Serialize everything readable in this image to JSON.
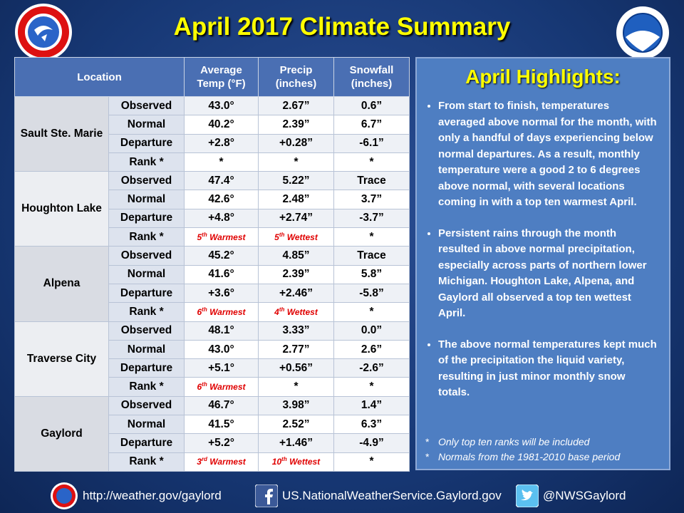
{
  "header": {
    "title": "April 2017 Climate Summary"
  },
  "table": {
    "columns": [
      "Location",
      "Average Temp (°F)",
      "Precip (inches)",
      "Snowfall (inches)"
    ],
    "row_labels": [
      "Observed",
      "Normal",
      "Departure",
      "Rank *"
    ],
    "locations": [
      {
        "name": "Sault Ste. Marie",
        "rows": [
          [
            "43.0°",
            "2.67”",
            "0.6”"
          ],
          [
            "40.2°",
            "2.39”",
            "6.7”"
          ],
          [
            "+2.8°",
            "+0.28”",
            "-6.1”"
          ],
          [
            "*",
            "*",
            "*"
          ]
        ]
      },
      {
        "name": "Houghton Lake",
        "rows": [
          [
            "47.4°",
            "5.22”",
            "Trace"
          ],
          [
            "42.6°",
            "2.48”",
            "3.7”"
          ],
          [
            "+4.8°",
            "+2.74”",
            "-3.7”"
          ],
          [
            {
              "number": "5",
              "suffix": "th",
              "label": "Warmest"
            },
            {
              "number": "5",
              "suffix": "th",
              "label": "Wettest"
            },
            "*"
          ]
        ]
      },
      {
        "name": "Alpena",
        "rows": [
          [
            "45.2°",
            "4.85”",
            "Trace"
          ],
          [
            "41.6°",
            "2.39”",
            "5.8”"
          ],
          [
            "+3.6°",
            "+2.46”",
            "-5.8”"
          ],
          [
            {
              "number": "6",
              "suffix": "th",
              "label": "Warmest"
            },
            {
              "number": "4",
              "suffix": "th",
              "label": "Wettest"
            },
            "*"
          ]
        ]
      },
      {
        "name": "Traverse City",
        "rows": [
          [
            "48.1°",
            "3.33”",
            "0.0”"
          ],
          [
            "43.0°",
            "2.77”",
            "2.6”"
          ],
          [
            "+5.1°",
            "+0.56”",
            "-2.6”"
          ],
          [
            {
              "number": "6",
              "suffix": "th",
              "label": "Warmest"
            },
            "*",
            "*"
          ]
        ]
      },
      {
        "name": "Gaylord",
        "rows": [
          [
            "46.7°",
            "3.98”",
            "1.4”"
          ],
          [
            "41.5°",
            "2.52”",
            "6.3”"
          ],
          [
            "+5.2°",
            "+1.46”",
            "-4.9”"
          ],
          [
            {
              "number": "3",
              "suffix": "rd",
              "label": "Warmest"
            },
            {
              "number": "10",
              "suffix": "th",
              "label": "Wettest"
            },
            "*"
          ]
        ]
      }
    ]
  },
  "highlights": {
    "title": "April Highlights:",
    "bullets": [
      "From start to finish, temperatures averaged above normal for the month, with only a handful of days experiencing below normal departures.  As a result, monthly temperature were a good 2 to 6 degrees above normal, with several locations coming in with a top ten warmest April.",
      "Persistent rains through the month resulted in above normal precipitation, especially across parts of northern lower Michigan.  Houghton Lake, Alpena, and Gaylord all observed a top ten wettest April.",
      "The above normal temperatures kept much of the precipitation the liquid variety, resulting in just minor monthly snow totals."
    ],
    "notes": [
      {
        "marker": "*",
        "text": "Only top ten ranks will be included"
      },
      {
        "marker": "*",
        "text": "Normals from the 1981-2010 base period"
      }
    ]
  },
  "footer": {
    "website": "http://weather.gov/gaylord",
    "facebook": "US.NationalWeatherService.Gaylord.gov",
    "twitter": "@NWSGaylord"
  }
}
